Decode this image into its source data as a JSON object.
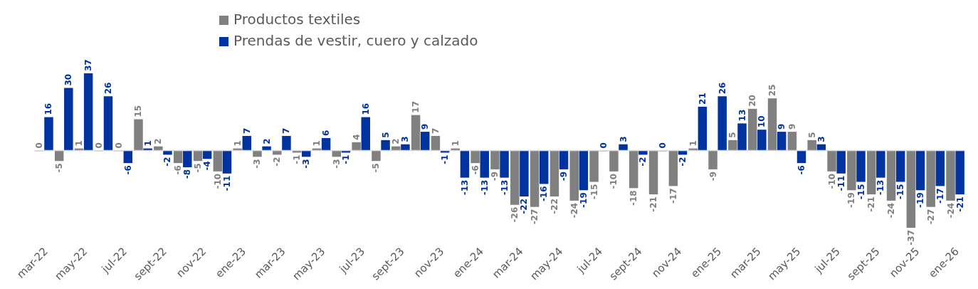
{
  "chart_data": {
    "type": "bar",
    "categories": [
      "mar-22",
      null,
      "may-22",
      null,
      "jul-22",
      null,
      "sept-22",
      null,
      "nov-22",
      null,
      "ene-23",
      null,
      "mar-23",
      null,
      "may-23",
      null,
      "jul-23",
      null,
      "sept-23",
      null,
      "nov-23",
      null,
      "ene-24",
      null,
      "mar-24",
      null,
      "may-24",
      null,
      "jul-24",
      null,
      "sept-24",
      null,
      "nov-24",
      null,
      "ene-25",
      null,
      "mar-25",
      null,
      "may-25",
      null,
      "jul-25",
      null,
      "sept-25",
      null,
      "nov-25",
      null,
      "ene-26"
    ],
    "series": [
      {
        "name": "Productos textiles",
        "color": "#808080",
        "values": [
          0,
          -5,
          1,
          0,
          0,
          15,
          2,
          -6,
          -5,
          -10,
          1,
          -3,
          -2,
          -1,
          1,
          -3,
          4,
          -5,
          2,
          17,
          7,
          1,
          -6,
          -9,
          -26,
          -27,
          -22,
          -24,
          -15,
          -10,
          -18,
          -21,
          -17,
          1,
          -9,
          5,
          20,
          25,
          9,
          5,
          -10,
          -19,
          -21,
          -24,
          -37,
          -27,
          -24
        ]
      },
      {
        "name": "Prendas de vestir, cuero y calzado",
        "color": "#0033a0",
        "values": [
          16,
          30,
          37,
          26,
          -6,
          1,
          -2,
          -8,
          -4,
          -11,
          7,
          2,
          7,
          -3,
          6,
          -1,
          16,
          5,
          3,
          9,
          -1,
          -13,
          -13,
          -13,
          -22,
          -16,
          -9,
          -19,
          0,
          3,
          -2,
          0,
          -2,
          21,
          26,
          13,
          10,
          9,
          -6,
          3,
          -11,
          -15,
          -13,
          -15,
          -19,
          -17,
          -21
        ]
      }
    ],
    "data_labels": true,
    "legend": "top"
  }
}
